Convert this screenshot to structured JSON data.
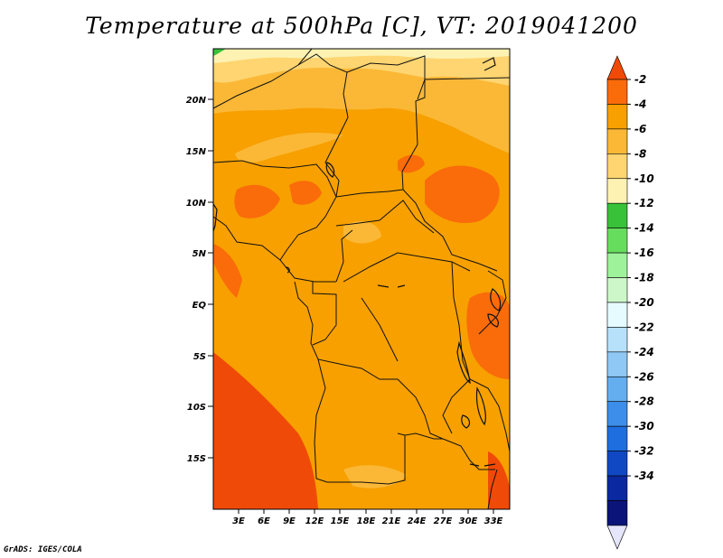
{
  "title": "Temperature at 500hPa [C], VT: 2019041200",
  "credit": "GrADS: IGES/COLA",
  "map": {
    "lat_ticks": [
      "20N",
      "15N",
      "10N",
      "5N",
      "EQ",
      "5S",
      "10S",
      "15S"
    ],
    "lon_ticks": [
      "3E",
      "6E",
      "9E",
      "12E",
      "15E",
      "18E",
      "21E",
      "24E",
      "27E",
      "30E",
      "33E"
    ]
  },
  "colorbar": {
    "labels": [
      "-2",
      "-4",
      "-6",
      "-8",
      "-10",
      "-12",
      "-14",
      "-16",
      "-18",
      "-20",
      "-22",
      "-24",
      "-26",
      "-28",
      "-30",
      "-32",
      "-34"
    ],
    "colors": [
      "#f04a08",
      "#fa6b0a",
      "#f7a000",
      "#fbb836",
      "#fed570",
      "#fdf2b2",
      "#38c23a",
      "#67dd5e",
      "#9ef29a",
      "#cdf7c9",
      "#e6fbff",
      "#b7e1fb",
      "#8fc8f5",
      "#64aef0",
      "#3c8eea",
      "#1e6ee0",
      "#1048c4",
      "#0a28a0",
      "#0b1478",
      "#e5e5fb"
    ]
  },
  "colors": {
    "warm": "#f04a08",
    "orange": "#f7a000",
    "light_orange": "#fbb836",
    "pale": "#fed570",
    "cream": "#fdf2b2",
    "green": "#38c23a"
  }
}
